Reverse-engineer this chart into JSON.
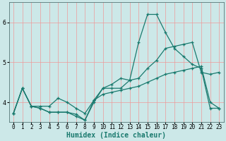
{
  "xlabel": "Humidex (Indice chaleur)",
  "bg_color": "#cce8e8",
  "grid_color": "#ee9999",
  "line_color": "#1a7a6e",
  "xlim": [
    -0.5,
    23.5
  ],
  "ylim": [
    3.5,
    6.5
  ],
  "yticks": [
    4,
    5,
    6
  ],
  "xticks": [
    0,
    1,
    2,
    3,
    4,
    5,
    6,
    7,
    8,
    9,
    10,
    11,
    12,
    13,
    14,
    15,
    16,
    17,
    18,
    19,
    20,
    21,
    22,
    23
  ],
  "line1_x": [
    0,
    1,
    2,
    3,
    4,
    5,
    6,
    7,
    8,
    9,
    10,
    11,
    12,
    13,
    14,
    15,
    16,
    17,
    18,
    19,
    20,
    21,
    22,
    23
  ],
  "line1_y": [
    3.72,
    4.35,
    3.9,
    3.9,
    3.9,
    4.1,
    4.0,
    3.85,
    3.72,
    4.05,
    4.35,
    4.45,
    4.6,
    4.55,
    4.6,
    4.85,
    5.05,
    5.35,
    5.4,
    5.45,
    5.5,
    4.75,
    4.7,
    4.75
  ],
  "line2_x": [
    0,
    1,
    2,
    3,
    4,
    5,
    6,
    7,
    8,
    9,
    10,
    11,
    12,
    13,
    14,
    15,
    16,
    17,
    18,
    19,
    20,
    21,
    22,
    23
  ],
  "line2_y": [
    3.72,
    4.35,
    3.9,
    3.85,
    3.75,
    3.75,
    3.75,
    3.65,
    3.55,
    4.0,
    4.35,
    4.35,
    4.35,
    4.55,
    5.5,
    6.2,
    6.2,
    5.75,
    5.35,
    5.15,
    4.95,
    4.85,
    3.85,
    3.85
  ],
  "line3_x": [
    0,
    1,
    2,
    3,
    4,
    5,
    6,
    7,
    8,
    9,
    10,
    11,
    12,
    13,
    14,
    15,
    16,
    17,
    18,
    19,
    20,
    21,
    22,
    23
  ],
  "line3_y": [
    3.72,
    4.35,
    3.9,
    3.85,
    3.75,
    3.75,
    3.75,
    3.7,
    3.55,
    4.05,
    4.2,
    4.25,
    4.3,
    4.35,
    4.4,
    4.5,
    4.6,
    4.7,
    4.75,
    4.8,
    4.85,
    4.9,
    4.0,
    3.85
  ],
  "tick_fontsize": 5.5,
  "xlabel_fontsize": 7,
  "xlabel_fontweight": "bold"
}
